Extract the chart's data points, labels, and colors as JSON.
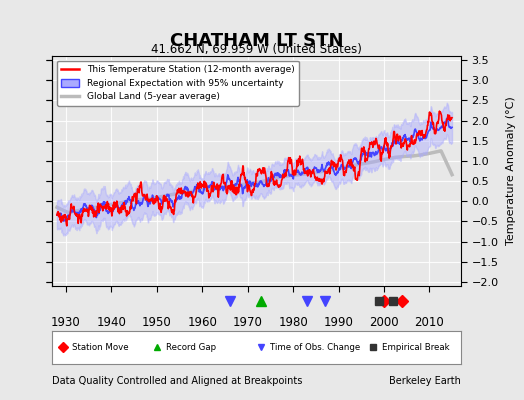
{
  "title": "CHATHAM LT STN",
  "subtitle": "41.662 N, 69.959 W (United States)",
  "ylabel": "Temperature Anomaly (°C)",
  "xlabel_footer": "Data Quality Controlled and Aligned at Breakpoints",
  "footer_right": "Berkeley Earth",
  "xlim": [
    1927,
    2017
  ],
  "ylim": [
    -2.1,
    3.6
  ],
  "yticks": [
    -2,
    -1.5,
    -1,
    -0.5,
    0,
    0.5,
    1,
    1.5,
    2,
    2.5,
    3,
    3.5
  ],
  "xticks": [
    1930,
    1940,
    1950,
    1960,
    1970,
    1980,
    1990,
    2000,
    2010
  ],
  "bg_color": "#e8e8e8",
  "plot_bg_color": "#e8e8e8",
  "station_moves": [
    2000,
    2004
  ],
  "record_gaps": [
    1973
  ],
  "obs_changes": [
    1966,
    1983,
    1987
  ],
  "empirical_breaks": [
    1999,
    2002
  ],
  "legend_items": [
    {
      "label": "This Temperature Station (12-month average)",
      "color": "#ff0000",
      "lw": 1.5
    },
    {
      "label": "Regional Expectation with 95% uncertainty",
      "color": "#4444ff",
      "lw": 1.5
    },
    {
      "label": "Global Land (5-year average)",
      "color": "#aaaaaa",
      "lw": 2.5
    }
  ],
  "marker_legend": [
    {
      "label": "Station Move",
      "color": "#ff0000",
      "marker": "D"
    },
    {
      "label": "Record Gap",
      "color": "#00aa00",
      "marker": "^"
    },
    {
      "label": "Time of Obs. Change",
      "color": "#4444ff",
      "marker": "v"
    },
    {
      "label": "Empirical Break",
      "color": "#000000",
      "marker": "s"
    }
  ]
}
